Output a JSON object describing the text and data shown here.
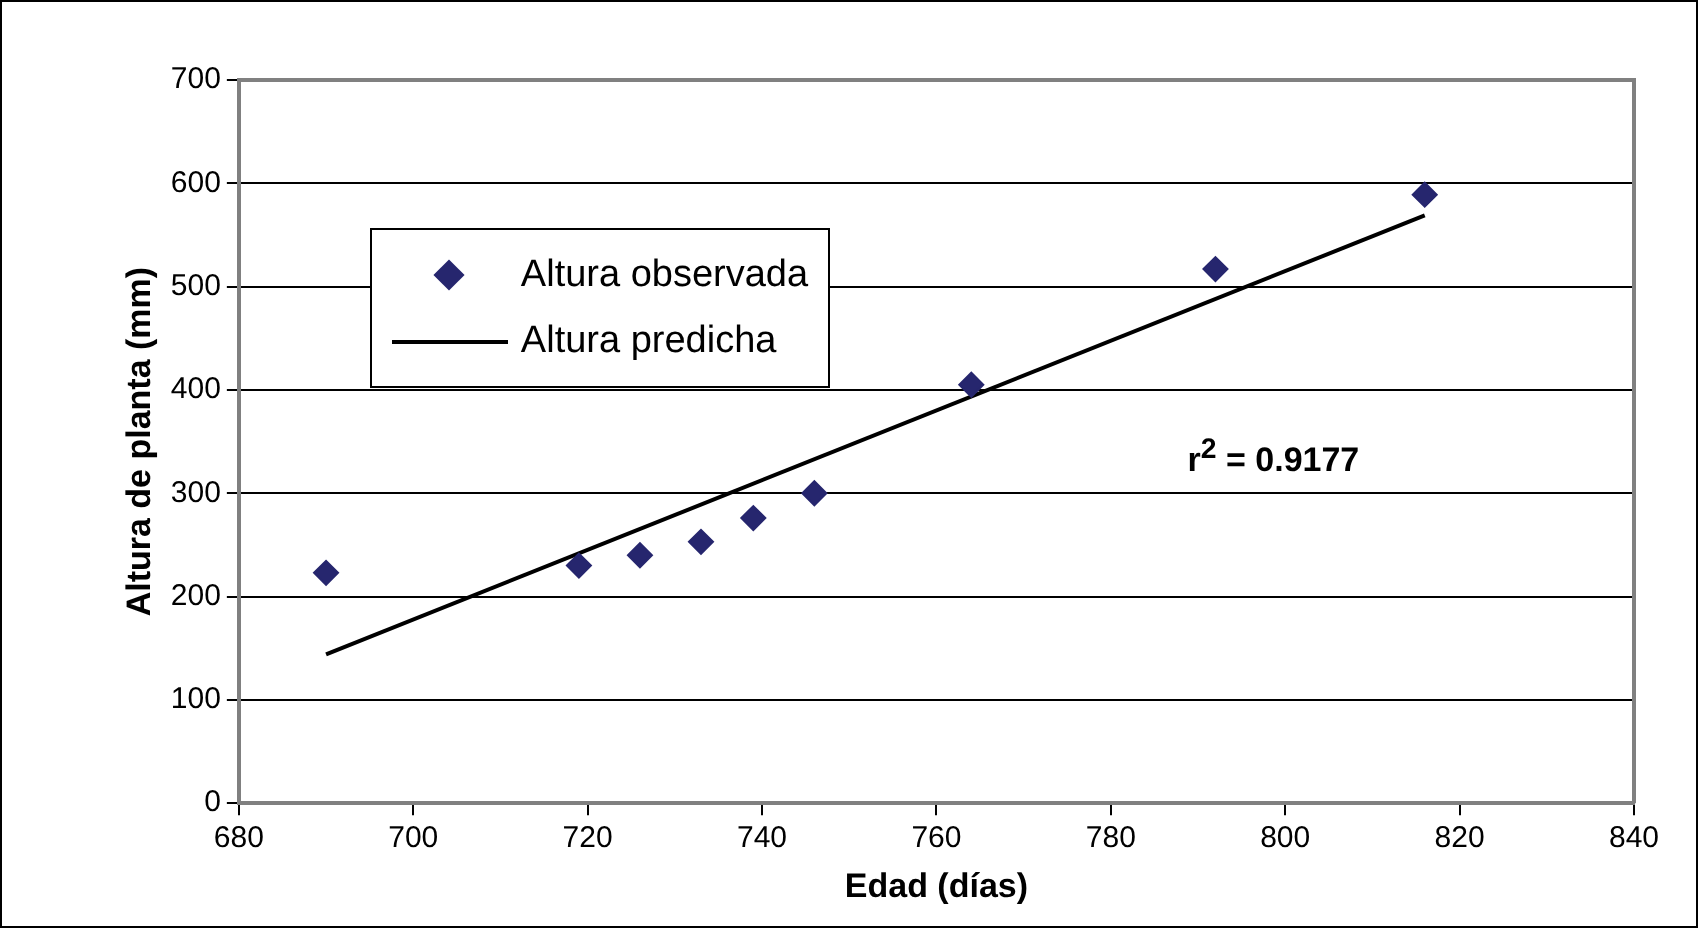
{
  "chart_data": {
    "type": "scatter",
    "xlabel": "Edad (días)",
    "ylabel": "Altura de planta (mm)",
    "xlim": [
      680,
      840
    ],
    "xticks": [
      680,
      700,
      720,
      740,
      760,
      780,
      800,
      820,
      840
    ],
    "ylim": [
      0,
      700
    ],
    "yticks": [
      0,
      100,
      200,
      300,
      400,
      500,
      600,
      700
    ],
    "grid": "y",
    "legend": "top left",
    "annotations": [
      "r$^{2}$ = 0.9177"
    ],
    "series": [
      {
        "name": "Altura observada",
        "marker": "diamond",
        "color": "#26266e",
        "x": [
          690,
          719,
          726,
          733,
          739,
          746,
          764,
          792,
          816
        ],
        "values": [
          223,
          230,
          240,
          253,
          276,
          300,
          405,
          517,
          589
        ]
      },
      {
        "name": "Altura predicha",
        "type": "line",
        "marker": "none",
        "color": "#000000",
        "x": [
          690,
          816
        ],
        "values": [
          144,
          569
        ]
      }
    ]
  }
}
